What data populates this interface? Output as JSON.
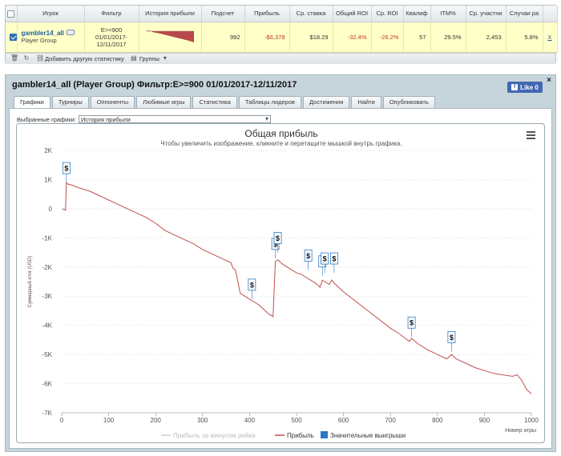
{
  "stats_table": {
    "headers": [
      "Игрок",
      "Фильтр",
      "История прибыли",
      "Подсчет",
      "Прибыль",
      "Ср. ставка",
      "Общий ROI",
      "Ср. ROI",
      "Квалиф",
      "ITM%",
      "Ср. участни",
      "Случаи ра"
    ],
    "row": {
      "checked": true,
      "player_name": "gambler14_all",
      "player_type": "Player Group",
      "filter_line1": "E>=900",
      "filter_line2": "01/01/2017-",
      "filter_line3": "12/11/2017",
      "count": "992",
      "profit": "-$6,378",
      "avg_stake": "$18.29",
      "total_roi": "-32.4%",
      "avg_roi": "-26.2%",
      "qualif": "57",
      "itm": "29.5%",
      "avg_entrants": "2,453",
      "cases": "5.8%",
      "remove": "X"
    }
  },
  "toolbar": {
    "add_stat_label": "Добавить другую статистику",
    "groups_label": "Группы"
  },
  "detail": {
    "title": "gambler14_all (Player Group) Фильтр:E>=900 01/01/2017-12/11/2017",
    "like_label": "Like 0",
    "tabs": [
      "Графики",
      "Турниры",
      "Оппоненты",
      "Любимые игры",
      "Статистика",
      "Таблицы лидеров",
      "Достижения",
      "Найти",
      "Опубликовать"
    ],
    "selected_charts_label": "Выбранные графики:",
    "selected_chart_value": "История прибыли"
  },
  "chart_data": {
    "type": "line",
    "title": "Общая прибыль",
    "subtitle": "Чтобы увеличить изображение, кликните и перетащите мышкой внутрь графика.",
    "xlabel": "Номер игры",
    "ylabel": "Суммарный итог (USD)",
    "xlim": [
      0,
      1000
    ],
    "ylim": [
      -7000,
      2000
    ],
    "x_ticks": [
      0,
      100,
      200,
      300,
      400,
      500,
      600,
      700,
      800,
      900,
      1000
    ],
    "y_ticks": [
      2000,
      1000,
      0,
      -1000,
      -2000,
      -3000,
      -4000,
      -5000,
      -6000,
      -7000
    ],
    "y_tick_labels": [
      "2K",
      "1K",
      "0",
      "-1K",
      "-2K",
      "-3K",
      "-4K",
      "-5K",
      "-6K",
      "-7K"
    ],
    "grid": true,
    "colors": {
      "profit": "#c0504d",
      "big_wins": "#2b78c5",
      "rake": "#cccccc"
    },
    "series": [
      {
        "name": "Прибыль",
        "x": [
          1,
          8,
          10,
          12,
          20,
          40,
          60,
          80,
          100,
          120,
          140,
          160,
          180,
          200,
          220,
          240,
          260,
          280,
          300,
          320,
          340,
          360,
          365,
          370,
          380,
          390,
          400,
          410,
          420,
          430,
          440,
          450,
          455,
          460,
          470,
          480,
          490,
          500,
          510,
          520,
          530,
          540,
          548,
          550,
          555,
          560,
          570,
          575,
          580,
          600,
          620,
          640,
          660,
          680,
          700,
          720,
          740,
          745,
          760,
          780,
          800,
          820,
          830,
          840,
          860,
          880,
          900,
          920,
          940,
          960,
          970,
          980,
          990,
          1000
        ],
        "y": [
          0,
          -50,
          900,
          850,
          820,
          700,
          600,
          450,
          300,
          150,
          0,
          -150,
          -300,
          -500,
          -750,
          -900,
          -1050,
          -1200,
          -1400,
          -1550,
          -1700,
          -1850,
          -2050,
          -2100,
          -2900,
          -3000,
          -3100,
          -3200,
          -3300,
          -3450,
          -3600,
          -3700,
          -1800,
          -1750,
          -1900,
          -2000,
          -2100,
          -2200,
          -2250,
          -2350,
          -2450,
          -2550,
          -2650,
          -2700,
          -2450,
          -2500,
          -2600,
          -2450,
          -2550,
          -2850,
          -3100,
          -3350,
          -3600,
          -3850,
          -4100,
          -4300,
          -4550,
          -4450,
          -4650,
          -4850,
          -5000,
          -5150,
          -5000,
          -5150,
          -5300,
          -5450,
          -5550,
          -5650,
          -5700,
          -5750,
          -5700,
          -5900,
          -6200,
          -6350
        ]
      },
      {
        "name": "Прибыль за минусом рейка",
        "x": [],
        "y": []
      }
    ],
    "big_wins": [
      {
        "x": 10,
        "y": 900
      },
      {
        "x": 405,
        "y": -3100
      },
      {
        "x": 455,
        "y": -1700
      },
      {
        "x": 460,
        "y": -1500
      },
      {
        "x": 525,
        "y": -2100
      },
      {
        "x": 555,
        "y": -2300
      },
      {
        "x": 560,
        "y": -2200
      },
      {
        "x": 580,
        "y": -2200
      },
      {
        "x": 745,
        "y": -4400
      },
      {
        "x": 830,
        "y": -4900
      }
    ],
    "big_win_marker": "$",
    "legend": [
      "Прибыль за минусом рейка",
      "Прибыль",
      "Значительные выигрыши"
    ],
    "legend_position": "bottom"
  }
}
